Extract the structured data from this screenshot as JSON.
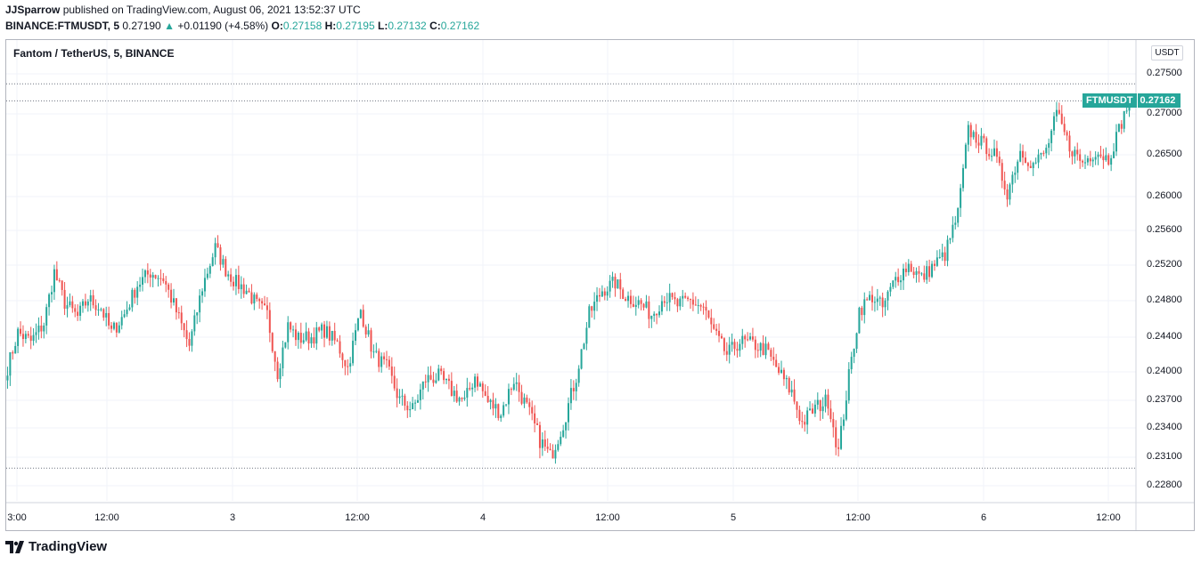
{
  "header": {
    "author": "JJSparrow",
    "published_text": "published on TradingView.com, August 06, 2021 13:52:37 UTC",
    "symbol_line": "BINANCE:FTMUSDT, 5",
    "last_price": "0.27190",
    "change": "+0.01190 (+4.58%)",
    "o_label": "O:",
    "o_value": "0.27158",
    "h_label": "H:",
    "h_value": "0.27195",
    "l_label": "L:",
    "l_value": "0.27132",
    "c_label": "C:",
    "c_value": "0.27162"
  },
  "chart_title": "Fantom / TetherUS, 5, BINANCE",
  "currency_badge": "USDT",
  "price_tag": {
    "symbol": "FTMUSDT",
    "value": "0.27162"
  },
  "y_ticks": [
    "0.27500",
    "0.27000",
    "0.26500",
    "0.26000",
    "0.25600",
    "0.25200",
    "0.24800",
    "0.24400",
    "0.24000",
    "0.23700",
    "0.23400",
    "0.23100",
    "0.22800"
  ],
  "x_ticks": [
    "3:00",
    "12:00",
    "3",
    "12:00",
    "4",
    "12:00",
    "5",
    "12:00",
    "6",
    "12:00"
  ],
  "brand": "TradingView",
  "colors": {
    "up": "#26a69a",
    "down": "#ef5350",
    "grid": "#f0f3fa",
    "border": "#b2b5be"
  },
  "chart_data": {
    "type": "candlestick",
    "interval": "5m",
    "ylim": [
      0.2265,
      0.2775
    ],
    "key_points": [
      [
        0,
        0.2405
      ],
      [
        4,
        0.2445
      ],
      [
        9,
        0.2435
      ],
      [
        14,
        0.2455
      ],
      [
        18,
        0.2512
      ],
      [
        22,
        0.2478
      ],
      [
        27,
        0.2462
      ],
      [
        31,
        0.2482
      ],
      [
        36,
        0.2472
      ],
      [
        40,
        0.2445
      ],
      [
        45,
        0.2465
      ],
      [
        50,
        0.2498
      ],
      [
        55,
        0.2512
      ],
      [
        60,
        0.2505
      ],
      [
        65,
        0.2468
      ],
      [
        70,
        0.243
      ],
      [
        75,
        0.2495
      ],
      [
        80,
        0.254
      ],
      [
        84,
        0.2515
      ],
      [
        88,
        0.25
      ],
      [
        92,
        0.2492
      ],
      [
        96,
        0.2475
      ],
      [
        100,
        0.2465
      ],
      [
        104,
        0.24
      ],
      [
        108,
        0.2452
      ],
      [
        112,
        0.2438
      ],
      [
        117,
        0.244
      ],
      [
        122,
        0.2448
      ],
      [
        127,
        0.2432
      ],
      [
        131,
        0.2405
      ],
      [
        136,
        0.247
      ],
      [
        141,
        0.242
      ],
      [
        146,
        0.2405
      ],
      [
        151,
        0.237
      ],
      [
        156,
        0.236
      ],
      [
        161,
        0.2392
      ],
      [
        166,
        0.2395
      ],
      [
        171,
        0.238
      ],
      [
        176,
        0.2368
      ],
      [
        180,
        0.2396
      ],
      [
        185,
        0.2368
      ],
      [
        190,
        0.2357
      ],
      [
        195,
        0.2392
      ],
      [
        200,
        0.2362
      ],
      [
        205,
        0.2328
      ],
      [
        209,
        0.231
      ],
      [
        214,
        0.2345
      ],
      [
        219,
        0.2395
      ],
      [
        224,
        0.2465
      ],
      [
        229,
        0.2492
      ],
      [
        234,
        0.25
      ],
      [
        238,
        0.2485
      ],
      [
        243,
        0.2478
      ],
      [
        248,
        0.2465
      ],
      [
        253,
        0.2485
      ],
      [
        258,
        0.2475
      ],
      [
        263,
        0.248
      ],
      [
        268,
        0.2472
      ],
      [
        272,
        0.2445
      ],
      [
        277,
        0.242
      ],
      [
        282,
        0.2435
      ],
      [
        287,
        0.2432
      ],
      [
        292,
        0.2425
      ],
      [
        297,
        0.24
      ],
      [
        302,
        0.2378
      ],
      [
        306,
        0.2345
      ],
      [
        311,
        0.2362
      ],
      [
        316,
        0.237
      ],
      [
        320,
        0.2315
      ],
      [
        324,
        0.2395
      ],
      [
        328,
        0.247
      ],
      [
        333,
        0.2485
      ],
      [
        337,
        0.2472
      ],
      [
        342,
        0.2505
      ],
      [
        347,
        0.252
      ],
      [
        352,
        0.2505
      ],
      [
        356,
        0.2518
      ],
      [
        361,
        0.2532
      ],
      [
        366,
        0.258
      ],
      [
        370,
        0.268
      ],
      [
        375,
        0.2665
      ],
      [
        380,
        0.265
      ],
      [
        385,
        0.2605
      ],
      [
        390,
        0.2655
      ],
      [
        395,
        0.2638
      ],
      [
        400,
        0.2655
      ],
      [
        404,
        0.27
      ],
      [
        409,
        0.266
      ],
      [
        414,
        0.264
      ],
      [
        419,
        0.2655
      ],
      [
        424,
        0.2645
      ],
      [
        429,
        0.269
      ],
      [
        432,
        0.2716
      ]
    ],
    "reference_lines": [
      0.27375,
      0.27162,
      0.22985
    ]
  }
}
